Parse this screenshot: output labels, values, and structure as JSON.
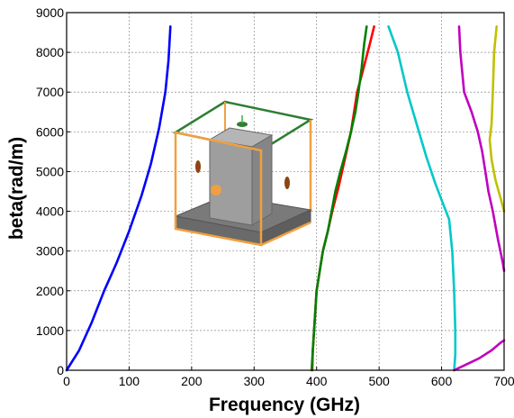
{
  "chart_data": {
    "type": "line",
    "title": "",
    "xlabel": "Frequency (GHz)",
    "ylabel": "beta(rad/m)",
    "xlim": [
      0,
      700
    ],
    "ylim": [
      0,
      9000
    ],
    "x_ticks": [
      0,
      100,
      200,
      300,
      400,
      500,
      600,
      700
    ],
    "y_ticks": [
      0,
      1000,
      2000,
      3000,
      4000,
      5000,
      6000,
      7000,
      8000,
      9000
    ],
    "x_tick_labels": [
      "0",
      "100",
      "200",
      "300",
      "400",
      "500",
      "600",
      "700"
    ],
    "y_tick_labels": [
      "0",
      "1000",
      "2000",
      "3000",
      "4000",
      "5000",
      "6000",
      "7000",
      "8000",
      "9000"
    ],
    "grid": true,
    "grid_style": "dashed",
    "series": [
      {
        "color": "#0000ff",
        "points": [
          [
            0,
            0
          ],
          [
            20,
            500
          ],
          [
            40,
            1200
          ],
          [
            60,
            2000
          ],
          [
            80,
            2700
          ],
          [
            100,
            3500
          ],
          [
            120,
            4400
          ],
          [
            135,
            5200
          ],
          [
            148,
            6100
          ],
          [
            158,
            7000
          ],
          [
            163,
            7800
          ],
          [
            166,
            8650
          ]
        ]
      },
      {
        "color": "#ff0000",
        "points": [
          [
            393,
            0
          ],
          [
            394,
            500
          ],
          [
            396,
            1000
          ],
          [
            398,
            1500
          ],
          [
            400,
            2000
          ],
          [
            405,
            2500
          ],
          [
            410,
            3000
          ],
          [
            418,
            3500
          ],
          [
            425,
            4000
          ],
          [
            435,
            4600
          ],
          [
            445,
            5300
          ],
          [
            455,
            6000
          ],
          [
            465,
            7000
          ],
          [
            475,
            7600
          ],
          [
            485,
            8200
          ],
          [
            492,
            8650
          ]
        ]
      },
      {
        "color": "#008000",
        "points": [
          [
            392,
            0
          ],
          [
            394,
            500
          ],
          [
            396,
            1000
          ],
          [
            398,
            1500
          ],
          [
            400,
            2000
          ],
          [
            405,
            2500
          ],
          [
            410,
            3000
          ],
          [
            418,
            3500
          ],
          [
            424,
            4000
          ],
          [
            430,
            4500
          ],
          [
            438,
            5000
          ],
          [
            447,
            5500
          ],
          [
            455,
            6000
          ],
          [
            462,
            6500
          ],
          [
            467,
            7000
          ],
          [
            472,
            7600
          ],
          [
            476,
            8200
          ],
          [
            480,
            8650
          ]
        ]
      },
      {
        "color": "#00c8c8",
        "points": [
          [
            515,
            8650
          ],
          [
            530,
            8000
          ],
          [
            545,
            7000
          ],
          [
            560,
            6200
          ],
          [
            575,
            5400
          ],
          [
            590,
            4700
          ],
          [
            602,
            4200
          ],
          [
            612,
            3800
          ],
          [
            617,
            3000
          ],
          [
            620,
            2000
          ],
          [
            622,
            1000
          ],
          [
            622,
            400
          ],
          [
            620,
            0
          ]
        ]
      },
      {
        "color": "#c000c0",
        "points": [
          [
            628,
            8650
          ],
          [
            630,
            8000
          ],
          [
            636,
            7000
          ],
          [
            648,
            6500
          ],
          [
            658,
            6000
          ],
          [
            665,
            5500
          ],
          [
            670,
            5000
          ],
          [
            675,
            4500
          ],
          [
            682,
            4000
          ],
          [
            690,
            3300
          ],
          [
            698,
            2700
          ],
          [
            700,
            2500
          ]
        ]
      },
      {
        "color": "#c0c000",
        "points": [
          [
            688,
            8650
          ],
          [
            684,
            8000
          ],
          [
            682,
            7000
          ],
          [
            680,
            6200
          ],
          [
            677,
            5800
          ],
          [
            680,
            5300
          ],
          [
            686,
            4800
          ],
          [
            695,
            4300
          ],
          [
            700,
            4000
          ]
        ]
      },
      {
        "color": "#c000c0",
        "points": [
          [
            620,
            0
          ],
          [
            640,
            150
          ],
          [
            660,
            300
          ],
          [
            680,
            500
          ],
          [
            695,
            700
          ],
          [
            700,
            750
          ]
        ]
      }
    ]
  },
  "inset": {
    "title": "",
    "colors": {
      "frame_orange": "#f0a040",
      "frame_green": "#2e7d32",
      "base_gray": "#7a7a7a",
      "block_gray": "#9e9e9e",
      "port_brown": "#8b4513"
    },
    "icons": [
      "waveguide-structure-icon"
    ]
  }
}
